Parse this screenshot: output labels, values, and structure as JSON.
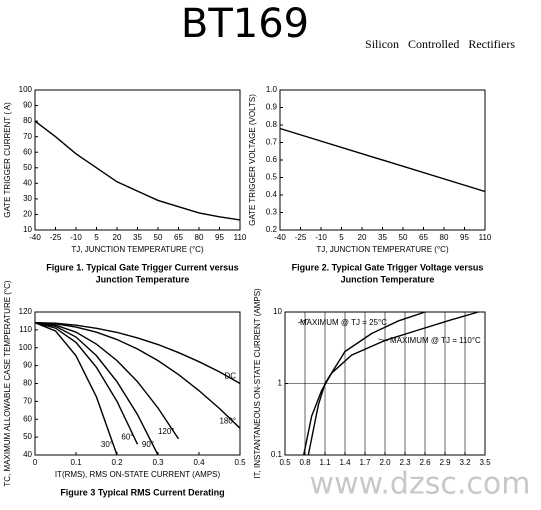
{
  "header": {
    "title": "BT169",
    "subtitle": "Silicon Controlled Rectifiers"
  },
  "watermark": "www.dzsc.com",
  "chart_data": [
    {
      "type": "line",
      "xlabel": "TJ, JUNCTION TEMPERATURE (°C)",
      "ylabel": "GATE TRIGGER CURRENT ( A)",
      "caption": [
        "Figure 1. Typical Gate Trigger Current versus",
        "Junction Temperature"
      ],
      "x": [
        -40,
        -25,
        -10,
        5,
        20,
        35,
        50,
        65,
        80,
        95,
        110
      ],
      "series": [
        {
          "color": "#000000",
          "values": [
            80,
            70,
            59,
            50,
            41,
            35,
            29,
            25,
            21,
            18.5,
            16.5
          ]
        }
      ],
      "xlim": [
        -40,
        110
      ],
      "xticks": [
        -40,
        -25,
        -10,
        5,
        20,
        35,
        50,
        65,
        80,
        95,
        110
      ],
      "ylim": [
        10,
        100
      ],
      "yticks": [
        10,
        20,
        30,
        40,
        50,
        60,
        70,
        80,
        90,
        100
      ],
      "grid": false,
      "ylog": false
    },
    {
      "type": "line",
      "xlabel": "TJ, JUNCTION TEMPERATURE (°C)",
      "ylabel": "GATE TRIGGER VOLTAGE (VOLTS)",
      "caption": [
        "Figure 2. Typical Gate Trigger Voltage versus",
        "Junction Temperature"
      ],
      "x": [
        -40,
        110
      ],
      "series": [
        {
          "color": "#000000",
          "values": [
            0.78,
            0.42
          ]
        }
      ],
      "xlim": [
        -40,
        110
      ],
      "xticks": [
        -40,
        -25,
        -10,
        5,
        20,
        35,
        50,
        65,
        80,
        95,
        110
      ],
      "ylim": [
        0.2,
        1
      ],
      "yticks": [
        0.2,
        0.3,
        0.4,
        0.5,
        0.6,
        0.7,
        0.8,
        0.9,
        {
          "value": 1,
          "label": "1.0"
        }
      ],
      "grid": false,
      "ylog": false
    },
    {
      "type": "line",
      "xlabel": "IT(RMS), RMS ON-STATE CURRENT (AMPS)",
      "ylabel": "TC, MAXIMUM ALLOWABLE CASE TEMPERATURE (°C)",
      "caption": [
        "Figure 3 Typical RMS Current Derating"
      ],
      "x": [
        0,
        0.05,
        0.1,
        0.15,
        0.2,
        0.25,
        0.3,
        0.35,
        0.4,
        0.45,
        0.5
      ],
      "series": [
        {
          "name": "30°",
          "color": "#000000",
          "values": [
            114,
            109.4,
            95.5,
            72.4,
            40,
            null,
            null,
            null,
            null,
            null,
            null
          ]
        },
        {
          "name": "60°",
          "color": "#000000",
          "values": [
            114,
            111,
            103,
            89,
            70,
            46,
            null,
            null,
            null,
            null,
            null
          ]
        },
        {
          "name": "90°",
          "color": "#000000",
          "values": [
            114,
            112,
            106,
            95.5,
            81,
            62.6,
            40,
            null,
            null,
            null,
            null
          ]
        },
        {
          "name": "120°",
          "color": "#000000",
          "values": [
            114,
            112.7,
            108.7,
            102,
            92.8,
            81,
            66.3,
            49,
            null,
            null,
            null
          ]
        },
        {
          "name": "180°",
          "color": "#000000",
          "values": [
            114,
            113.4,
            111.6,
            108.7,
            104.6,
            99.3,
            92.8,
            85,
            76,
            66,
            55
          ]
        },
        {
          "name": "DC",
          "color": "#000000",
          "values": [
            114,
            113.7,
            112.6,
            110.9,
            108.6,
            105.5,
            101.8,
            97.3,
            92.2,
            86.5,
            80
          ]
        }
      ],
      "xlim": [
        0,
        0.5
      ],
      "xticks": [
        0,
        0.1,
        0.2,
        0.3,
        0.4,
        0.5
      ],
      "ylim": [
        40,
        120
      ],
      "yticks": [
        40,
        50,
        60,
        70,
        80,
        90,
        100,
        110,
        120
      ],
      "grid": false,
      "ylog": false
    },
    {
      "type": "line",
      "ylabel": "IT, INSTANTANEOUS ON-STATE CURRENT (AMPS)",
      "series": [
        {
          "name": "MAXIMUM @ TJ = 25°C",
          "color": "#000000",
          "x": [
            0.85,
            1,
            1.1,
            1.4,
            1.8,
            2.2,
            2.6
          ],
          "values": [
            0.1,
            0.5,
            1,
            2.8,
            5,
            7.5,
            10
          ]
        },
        {
          "name": "MAXIMUM @ TJ = 110°C",
          "color": "#000000",
          "x": [
            0.78,
            0.9,
            1.05,
            1.2,
            1.5,
            2,
            2.5,
            3,
            3.4
          ],
          "values": [
            0.1,
            0.35,
            0.8,
            1.4,
            2.5,
            4,
            5.6,
            7.8,
            10
          ]
        }
      ],
      "xlim": [
        0.5,
        3.5
      ],
      "xticks": [
        0.5,
        0.8,
        1.1,
        1.4,
        1.7,
        {
          "value": 2,
          "label": "2.0"
        },
        2.3,
        2.6,
        2.9,
        3.2,
        3.5
      ],
      "ylim": [
        0.1,
        10
      ],
      "yticks": [
        0.1,
        1,
        10
      ],
      "grid": true,
      "ylog": true
    }
  ]
}
